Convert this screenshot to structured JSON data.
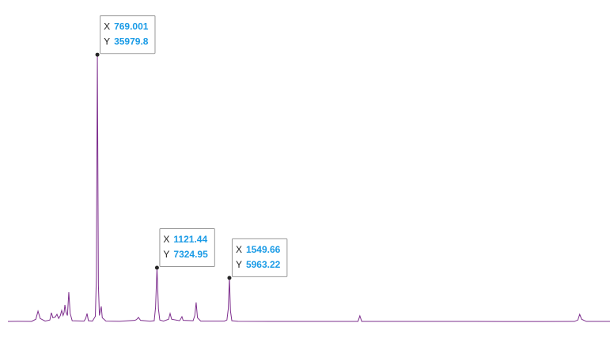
{
  "chart_data": {
    "type": "line",
    "color": "#7e2f8e",
    "xlim": [
      240,
      3800
    ],
    "ylim": [
      0,
      36000
    ],
    "x": [
      240,
      300,
      380,
      405,
      418,
      431,
      460,
      488,
      497,
      506,
      520,
      530,
      540,
      550,
      558,
      566,
      572,
      577,
      583,
      592,
      600,
      608,
      620,
      690,
      700,
      708,
      716,
      740,
      757,
      763,
      769.001,
      775,
      781,
      786,
      792,
      798,
      820,
      900,
      990,
      1000,
      1012,
      1024,
      1080,
      1105,
      1113,
      1121.44,
      1130,
      1138,
      1160,
      1190,
      1199,
      1208,
      1255,
      1262,
      1269,
      1276,
      1335,
      1345,
      1353,
      1361,
      1380,
      1520,
      1535,
      1543,
      1549.66,
      1556,
      1564,
      1600,
      1800,
      2000,
      2310,
      2321,
      2332,
      2600,
      3000,
      3400,
      3590,
      3610,
      3621,
      3632,
      3660,
      3800
    ],
    "values": [
      100,
      120,
      110,
      400,
      1490,
      500,
      150,
      300,
      1270,
      600,
      700,
      1060,
      500,
      900,
      1590,
      900,
      1300,
      2330,
      1400,
      900,
      4030,
      1200,
      200,
      150,
      500,
      1170,
      200,
      150,
      800,
      6000,
      35979.8,
      5000,
      900,
      1500,
      2120,
      600,
      150,
      120,
      250,
      350,
      640,
      250,
      130,
      200,
      2000,
      7324.95,
      1800,
      300,
      150,
      400,
      1170,
      400,
      200,
      450,
      740,
      250,
      200,
      900,
      2650,
      600,
      150,
      150,
      300,
      1800,
      5963.22,
      1500,
      200,
      120,
      110,
      100,
      110,
      850,
      110,
      100,
      100,
      90,
      100,
      300,
      1060,
      400,
      100,
      100
    ],
    "datatip_labels": [
      "X",
      "Y"
    ],
    "datatips": [
      {
        "x": 769.001,
        "y": 35979.8
      },
      {
        "x": 1121.44,
        "y": 7324.95
      },
      {
        "x": 1549.66,
        "y": 5963.22
      }
    ]
  }
}
